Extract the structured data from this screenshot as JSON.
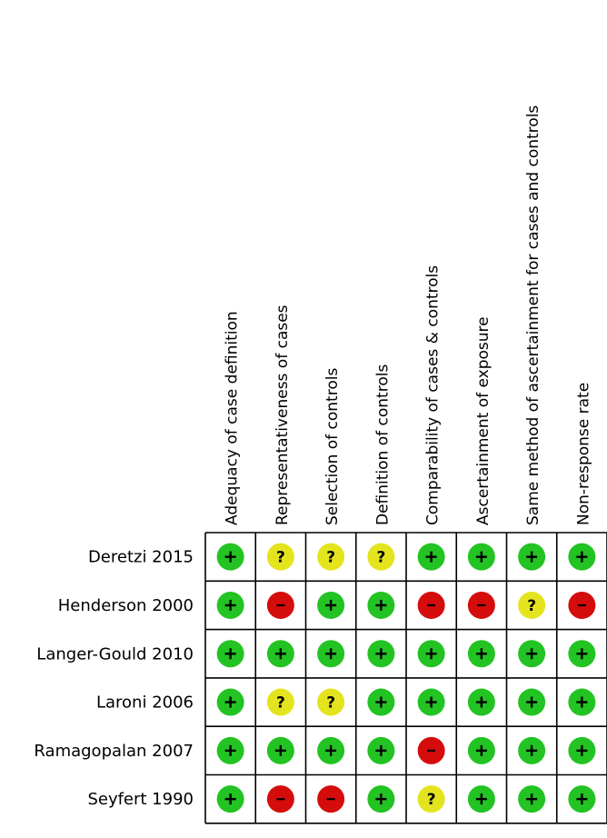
{
  "chart_data": {
    "type": "table",
    "columns": [
      "Adequacy of case definition",
      "Representativeness of cases",
      "Selection of controls",
      "Definition of controls",
      "Comparability of cases & controls",
      "Ascertainment of exposure",
      "Same method of ascertainment for cases and controls",
      "Non-response rate"
    ],
    "rows": [
      "Deretzi 2015",
      "Henderson 2000",
      "Langer-Gould 2010",
      "Laroni 2006",
      "Ramagopalan 2007",
      "Seyfert 1990"
    ],
    "values": [
      [
        "+",
        "?",
        "?",
        "?",
        "+",
        "+",
        "+",
        "+"
      ],
      [
        "+",
        "-",
        "+",
        "+",
        "-",
        "-",
        "?",
        "-"
      ],
      [
        "+",
        "+",
        "+",
        "+",
        "+",
        "+",
        "+",
        "+"
      ],
      [
        "+",
        "?",
        "?",
        "+",
        "+",
        "+",
        "+",
        "+"
      ],
      [
        "+",
        "+",
        "+",
        "+",
        "-",
        "+",
        "+",
        "+"
      ],
      [
        "+",
        "-",
        "-",
        "+",
        "?",
        "+",
        "+",
        "+"
      ]
    ],
    "legend_symbols": {
      "+": "plus-icon",
      "-": "minus-icon",
      "?": "question-icon"
    },
    "colors": {
      "+": "#22c322",
      "-": "#d40c0c",
      "?": "#e4e41e",
      "border": "#000000"
    }
  }
}
